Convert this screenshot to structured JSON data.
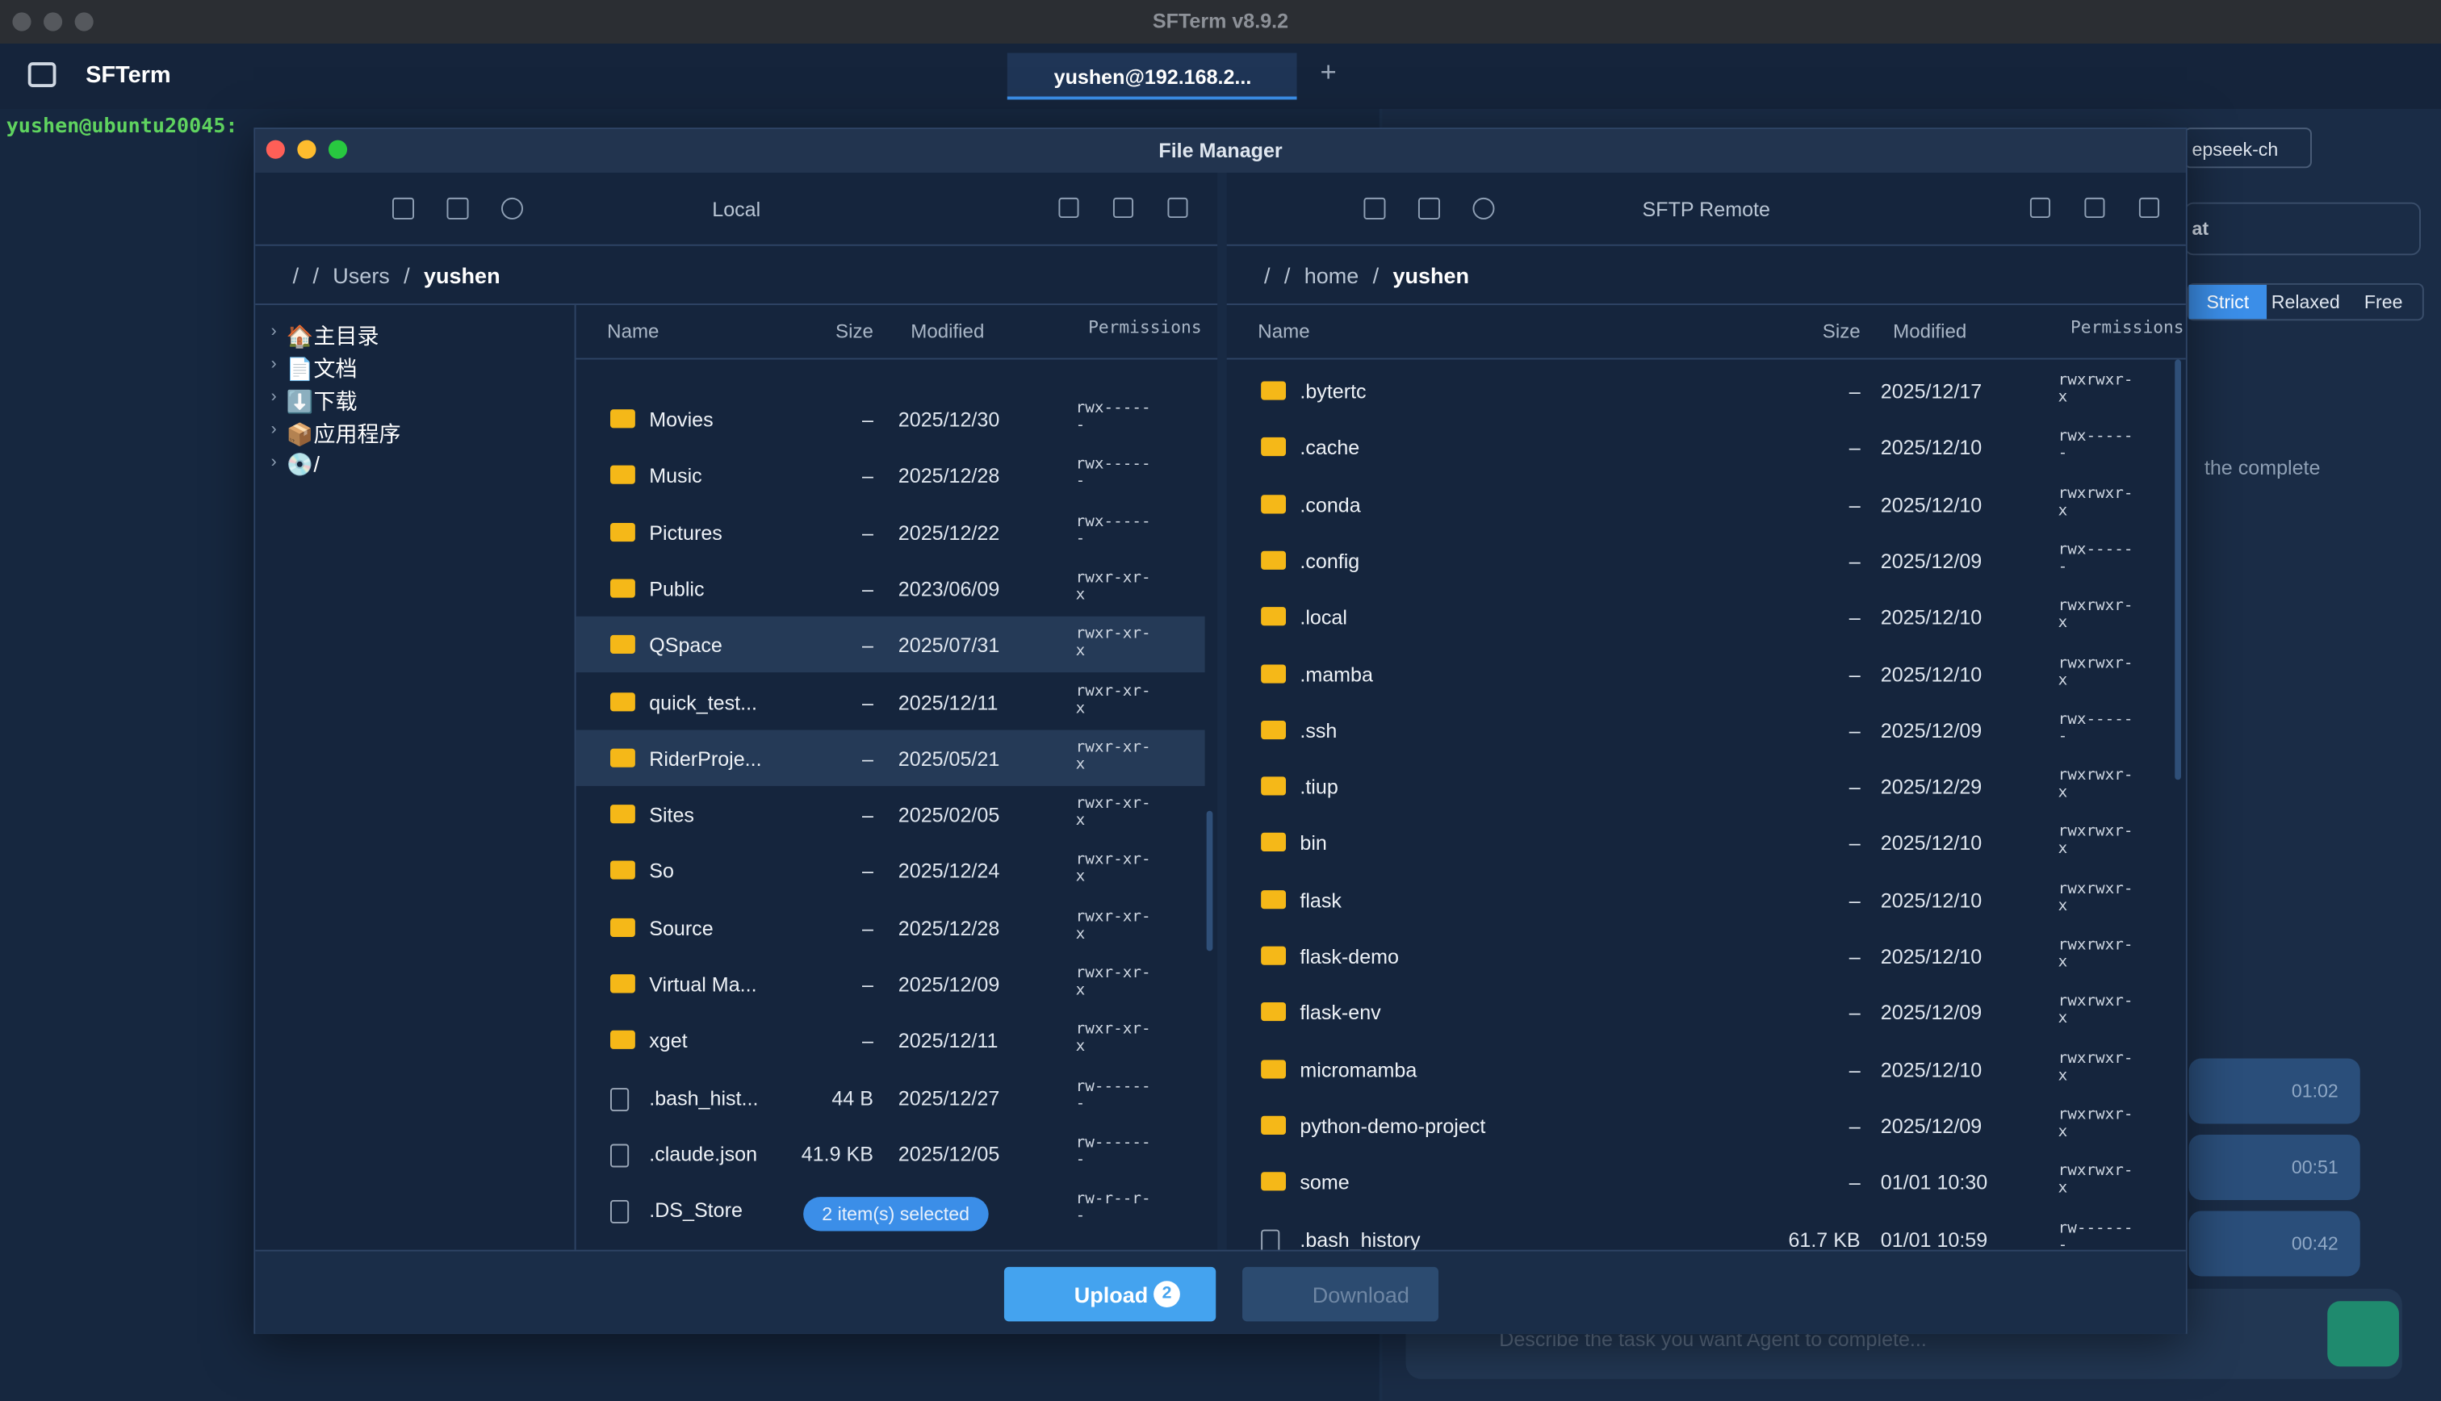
{
  "app": {
    "window_title": "SFTerm v8.9.2",
    "brand": "SFTerm",
    "tab": "yushen@192.168.2...",
    "prompt": "yushen@ubuntu20045:"
  },
  "side": {
    "model": "epseek-ch",
    "chat": "at",
    "modes": [
      "Strict",
      "Relaxed",
      "Free"
    ],
    "message": "the complete",
    "times": [
      "01:02",
      "00:51",
      "00:42"
    ],
    "placeholder": "Describe the task you want Agent to complete..."
  },
  "file_manager": {
    "title": "File Manager",
    "columns": [
      "Name",
      "Size",
      "Modified",
      "Permissions"
    ],
    "local": {
      "label": "Local",
      "breadcrumb": [
        "/",
        "/",
        "Users",
        "/",
        "yushen"
      ],
      "tree": [
        "🏠主目录",
        "📄文档",
        "⬇️下载",
        "📦应用程序",
        "💿/"
      ],
      "rows": [
        {
          "name": "Movies",
          "size": "–",
          "modified": "2025/12/30",
          "perm": "rwx------",
          "kind": "dir"
        },
        {
          "name": "Music",
          "size": "–",
          "modified": "2025/12/28",
          "perm": "rwx------",
          "kind": "dir"
        },
        {
          "name": "Pictures",
          "size": "–",
          "modified": "2025/12/22",
          "perm": "rwx------",
          "kind": "dir"
        },
        {
          "name": "Public",
          "size": "–",
          "modified": "2023/06/09",
          "perm": "rwxr-xr-x",
          "kind": "dir"
        },
        {
          "name": "QSpace",
          "size": "–",
          "modified": "2025/07/31",
          "perm": "rwxr-xr-x",
          "kind": "dir",
          "selected": true
        },
        {
          "name": "quick_test...",
          "size": "–",
          "modified": "2025/12/11",
          "perm": "rwxr-xr-x",
          "kind": "dir"
        },
        {
          "name": "RiderProje...",
          "size": "–",
          "modified": "2025/05/21",
          "perm": "rwxr-xr-x",
          "kind": "dir",
          "selected": true
        },
        {
          "name": "Sites",
          "size": "–",
          "modified": "2025/02/05",
          "perm": "rwxr-xr-x",
          "kind": "dir"
        },
        {
          "name": "So",
          "size": "–",
          "modified": "2025/12/24",
          "perm": "rwxr-xr-x",
          "kind": "dir"
        },
        {
          "name": "Source",
          "size": "–",
          "modified": "2025/12/28",
          "perm": "rwxr-xr-x",
          "kind": "dir"
        },
        {
          "name": "Virtual Ma...",
          "size": "–",
          "modified": "2025/12/09",
          "perm": "rwxr-xr-x",
          "kind": "dir"
        },
        {
          "name": "xget",
          "size": "–",
          "modified": "2025/12/11",
          "perm": "rwxr-xr-x",
          "kind": "dir"
        },
        {
          "name": ".bash_hist...",
          "size": "44 B",
          "modified": "2025/12/27",
          "perm": "rw-------",
          "kind": "file"
        },
        {
          "name": ".claude.json",
          "size": "41.9 KB",
          "modified": "2025/12/05",
          "perm": "rw-------",
          "kind": "file"
        },
        {
          "name": ".DS_Store",
          "modified": "/25",
          "perm": "rw-r--r--",
          "kind": "file"
        }
      ],
      "selection": "2 item(s) selected"
    },
    "remote": {
      "label": "SFTP Remote",
      "breadcrumb": [
        "/",
        "/",
        "home",
        "/",
        "yushen"
      ],
      "rows": [
        {
          "name": ".bytertc",
          "size": "–",
          "modified": "2025/12/17",
          "perm": "rwxrwxr-x",
          "kind": "dir"
        },
        {
          "name": ".cache",
          "size": "–",
          "modified": "2025/12/10",
          "perm": "rwx------",
          "kind": "dir"
        },
        {
          "name": ".conda",
          "size": "–",
          "modified": "2025/12/10",
          "perm": "rwxrwxr-x",
          "kind": "dir"
        },
        {
          "name": ".config",
          "size": "–",
          "modified": "2025/12/09",
          "perm": "rwx------",
          "kind": "dir"
        },
        {
          "name": ".local",
          "size": "–",
          "modified": "2025/12/10",
          "perm": "rwxrwxr-x",
          "kind": "dir"
        },
        {
          "name": ".mamba",
          "size": "–",
          "modified": "2025/12/10",
          "perm": "rwxrwxr-x",
          "kind": "dir"
        },
        {
          "name": ".ssh",
          "size": "–",
          "modified": "2025/12/09",
          "perm": "rwx------",
          "kind": "dir"
        },
        {
          "name": ".tiup",
          "size": "–",
          "modified": "2025/12/29",
          "perm": "rwxrwxr-x",
          "kind": "dir"
        },
        {
          "name": "bin",
          "size": "–",
          "modified": "2025/12/10",
          "perm": "rwxrwxr-x",
          "kind": "dir"
        },
        {
          "name": "flask",
          "size": "–",
          "modified": "2025/12/10",
          "perm": "rwxrwxr-x",
          "kind": "dir"
        },
        {
          "name": "flask-demo",
          "size": "–",
          "modified": "2025/12/10",
          "perm": "rwxrwxr-x",
          "kind": "dir"
        },
        {
          "name": "flask-env",
          "size": "–",
          "modified": "2025/12/09",
          "perm": "rwxrwxr-x",
          "kind": "dir"
        },
        {
          "name": "micromamba",
          "size": "–",
          "modified": "2025/12/10",
          "perm": "rwxrwxr-x",
          "kind": "dir"
        },
        {
          "name": "python-demo-project",
          "size": "–",
          "modified": "2025/12/09",
          "perm": "rwxrwxr-x",
          "kind": "dir"
        },
        {
          "name": "some",
          "size": "–",
          "modified": "01/01 10:30",
          "perm": "rwxrwxr-x",
          "kind": "dir"
        },
        {
          "name": ".bash_history",
          "size": "61.7 KB",
          "modified": "01/01 10:59",
          "perm": "rw-------",
          "kind": "file"
        }
      ]
    },
    "upload": "Upload",
    "upload_count": "2",
    "download": "Download"
  }
}
